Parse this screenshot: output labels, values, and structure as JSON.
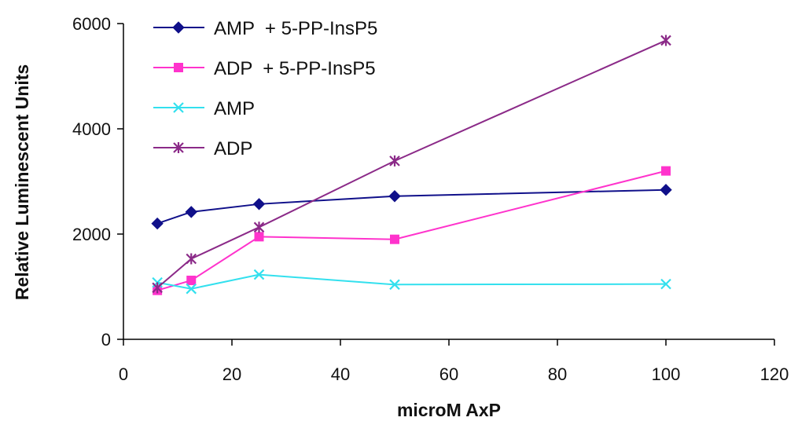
{
  "chart_data": {
    "type": "line",
    "xlabel": "microM AxP",
    "ylabel": "Relative Luminescent Units",
    "xlim": [
      0,
      120
    ],
    "ylim": [
      0,
      6000
    ],
    "x_ticks": [
      "0",
      "20",
      "40",
      "60",
      "80",
      "100",
      "120"
    ],
    "y_ticks": [
      "0",
      "2000",
      "4000",
      "6000"
    ],
    "grid": false,
    "legend_position": "top-left",
    "x": [
      6.25,
      12.5,
      25,
      50,
      100
    ],
    "series": [
      {
        "name": "AMP  + 5-PP-InsP5",
        "color": "#10108a",
        "marker": "diamond",
        "values": [
          2200,
          2420,
          2570,
          2720,
          2840
        ]
      },
      {
        "name": "ADP  + 5-PP-InsP5",
        "color": "#ff33cc",
        "marker": "square",
        "values": [
          930,
          1120,
          1950,
          1900,
          3200
        ]
      },
      {
        "name": "AMP",
        "color": "#33e0ee",
        "marker": "x",
        "values": [
          1080,
          960,
          1230,
          1040,
          1050
        ]
      },
      {
        "name": "ADP",
        "color": "#8b2a88",
        "marker": "asterisk",
        "values": [
          980,
          1530,
          2130,
          3390,
          5680
        ]
      }
    ]
  }
}
